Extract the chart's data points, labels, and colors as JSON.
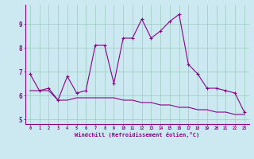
{
  "xlabel": "Windchill (Refroidissement éolien,°C)",
  "x": [
    0,
    1,
    2,
    3,
    4,
    5,
    6,
    7,
    8,
    9,
    10,
    11,
    12,
    13,
    14,
    15,
    16,
    17,
    18,
    19,
    20,
    21,
    22,
    23
  ],
  "line1": [
    6.9,
    6.2,
    6.3,
    5.8,
    6.8,
    6.1,
    6.2,
    8.1,
    8.1,
    6.5,
    8.4,
    8.4,
    9.2,
    8.4,
    8.7,
    9.1,
    9.4,
    7.3,
    6.9,
    6.3,
    6.3,
    6.2,
    6.1,
    5.3
  ],
  "line2": [
    6.2,
    6.2,
    6.2,
    5.8,
    5.8,
    5.9,
    5.9,
    5.9,
    5.9,
    5.9,
    5.8,
    5.8,
    5.7,
    5.7,
    5.6,
    5.6,
    5.5,
    5.5,
    5.4,
    5.4,
    5.3,
    5.3,
    5.2,
    5.2
  ],
  "line_color": "#8b008b",
  "bg_color": "#cce8f0",
  "grid_color": "#99ccbb",
  "axis_color": "#8b008b",
  "tick_color": "#8b008b",
  "ylim": [
    4.8,
    9.8
  ],
  "yticks": [
    5,
    6,
    7,
    8,
    9
  ],
  "xlim": [
    -0.5,
    23.5
  ]
}
